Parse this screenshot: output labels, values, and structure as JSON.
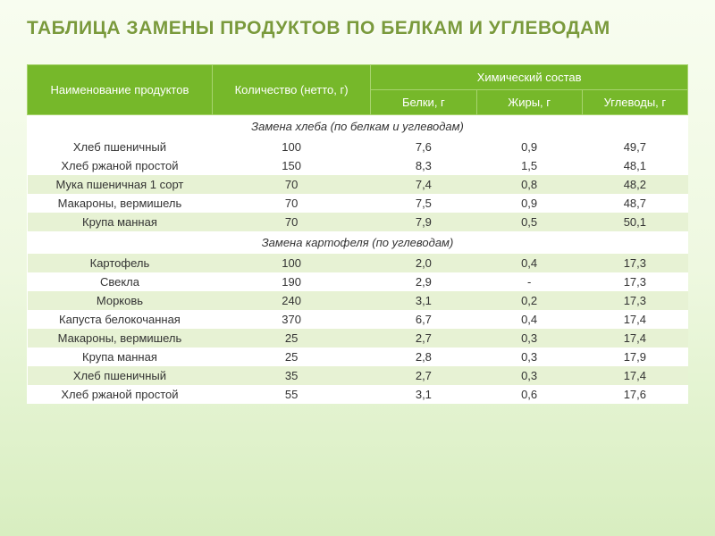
{
  "title": "ТАБЛИЦА ЗАМЕНЫ ПРОДУКТОВ ПО БЕЛКАМ И УГЛЕВОДАМ",
  "header": {
    "name": "Наименование продуктов",
    "qty": "Количество (нетто, г)",
    "chem": "Химический состав",
    "protein": "Белки, г",
    "fat": "Жиры, г",
    "carb": "Углеводы, г"
  },
  "section1": "Замена хлеба (по белкам и углеводам)",
  "section2": "Замена картофеля (по углеводам)",
  "r1": {
    "name": "Хлеб пшеничный",
    "qty": "100",
    "p": "7,6",
    "f": "0,9",
    "c": "49,7"
  },
  "r2": {
    "name": "Хлеб ржаной простой",
    "qty": "150",
    "p": "8,3",
    "f": "1,5",
    "c": "48,1"
  },
  "r3": {
    "name": "Мука пшеничная 1 сорт",
    "qty": "70",
    "p": "7,4",
    "f": "0,8",
    "c": "48,2"
  },
  "r4": {
    "name": "Макароны, вермишель",
    "qty": "70",
    "p": "7,5",
    "f": "0,9",
    "c": "48,7"
  },
  "r5": {
    "name": "Крупа манная",
    "qty": "70",
    "p": "7,9",
    "f": "0,5",
    "c": "50,1"
  },
  "r6": {
    "name": "Картофель",
    "qty": "100",
    "p": "2,0",
    "f": "0,4",
    "c": "17,3"
  },
  "r7": {
    "name": "Свекла",
    "qty": "190",
    "p": "2,9",
    "f": "-",
    "c": "17,3"
  },
  "r8": {
    "name": "Морковь",
    "qty": "240",
    "p": "3,1",
    "f": "0,2",
    "c": "17,3"
  },
  "r9": {
    "name": "Капуста белокочанная",
    "qty": "370",
    "p": "6,7",
    "f": "0,4",
    "c": "17,4"
  },
  "r10": {
    "name": "Макароны, вермишель",
    "qty": "25",
    "p": "2,7",
    "f": "0,3",
    "c": "17,4"
  },
  "r11": {
    "name": "Крупа манная",
    "qty": "25",
    "p": "2,8",
    "f": "0,3",
    "c": "17,9"
  },
  "r12": {
    "name": "Хлеб пшеничный",
    "qty": "35",
    "p": "2,7",
    "f": "0,3",
    "c": "17,4"
  },
  "r13": {
    "name": "Хлеб ржаной простой",
    "qty": "55",
    "p": "3,1",
    "f": "0,6",
    "c": "17,6"
  }
}
